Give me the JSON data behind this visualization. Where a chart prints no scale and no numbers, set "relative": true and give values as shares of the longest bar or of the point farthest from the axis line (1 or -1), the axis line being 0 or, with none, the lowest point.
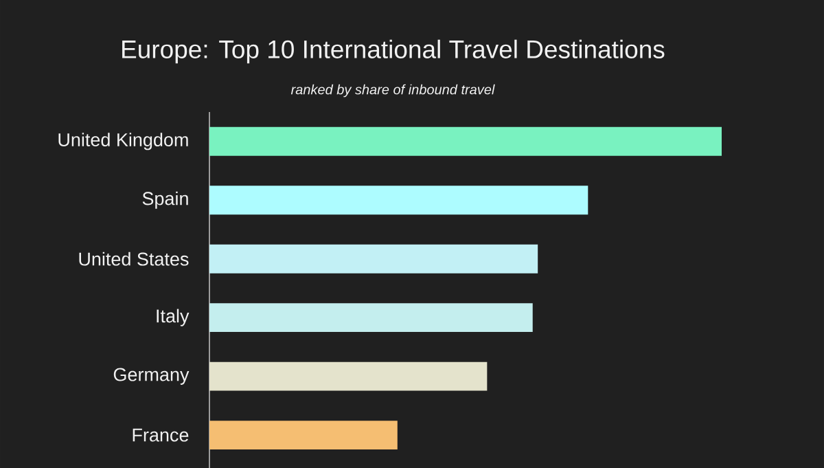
{
  "chart_data": {
    "type": "bar",
    "orientation": "horizontal",
    "relative": true,
    "title": "Europe: Top 10 International Travel Destinations",
    "subtitle": "ranked by share of inbound travel",
    "categories": [
      "United Kingdom",
      "Spain",
      "United States",
      "Italy",
      "Germany",
      "France"
    ],
    "values": [
      1,
      0.739,
      0.641,
      0.631,
      0.542,
      0.367
    ],
    "colors": [
      "#79f2c0",
      "#adfcff",
      "#c2f0f5",
      "#c4eeee",
      "#e4e3cc",
      "#f5be72"
    ]
  }
}
